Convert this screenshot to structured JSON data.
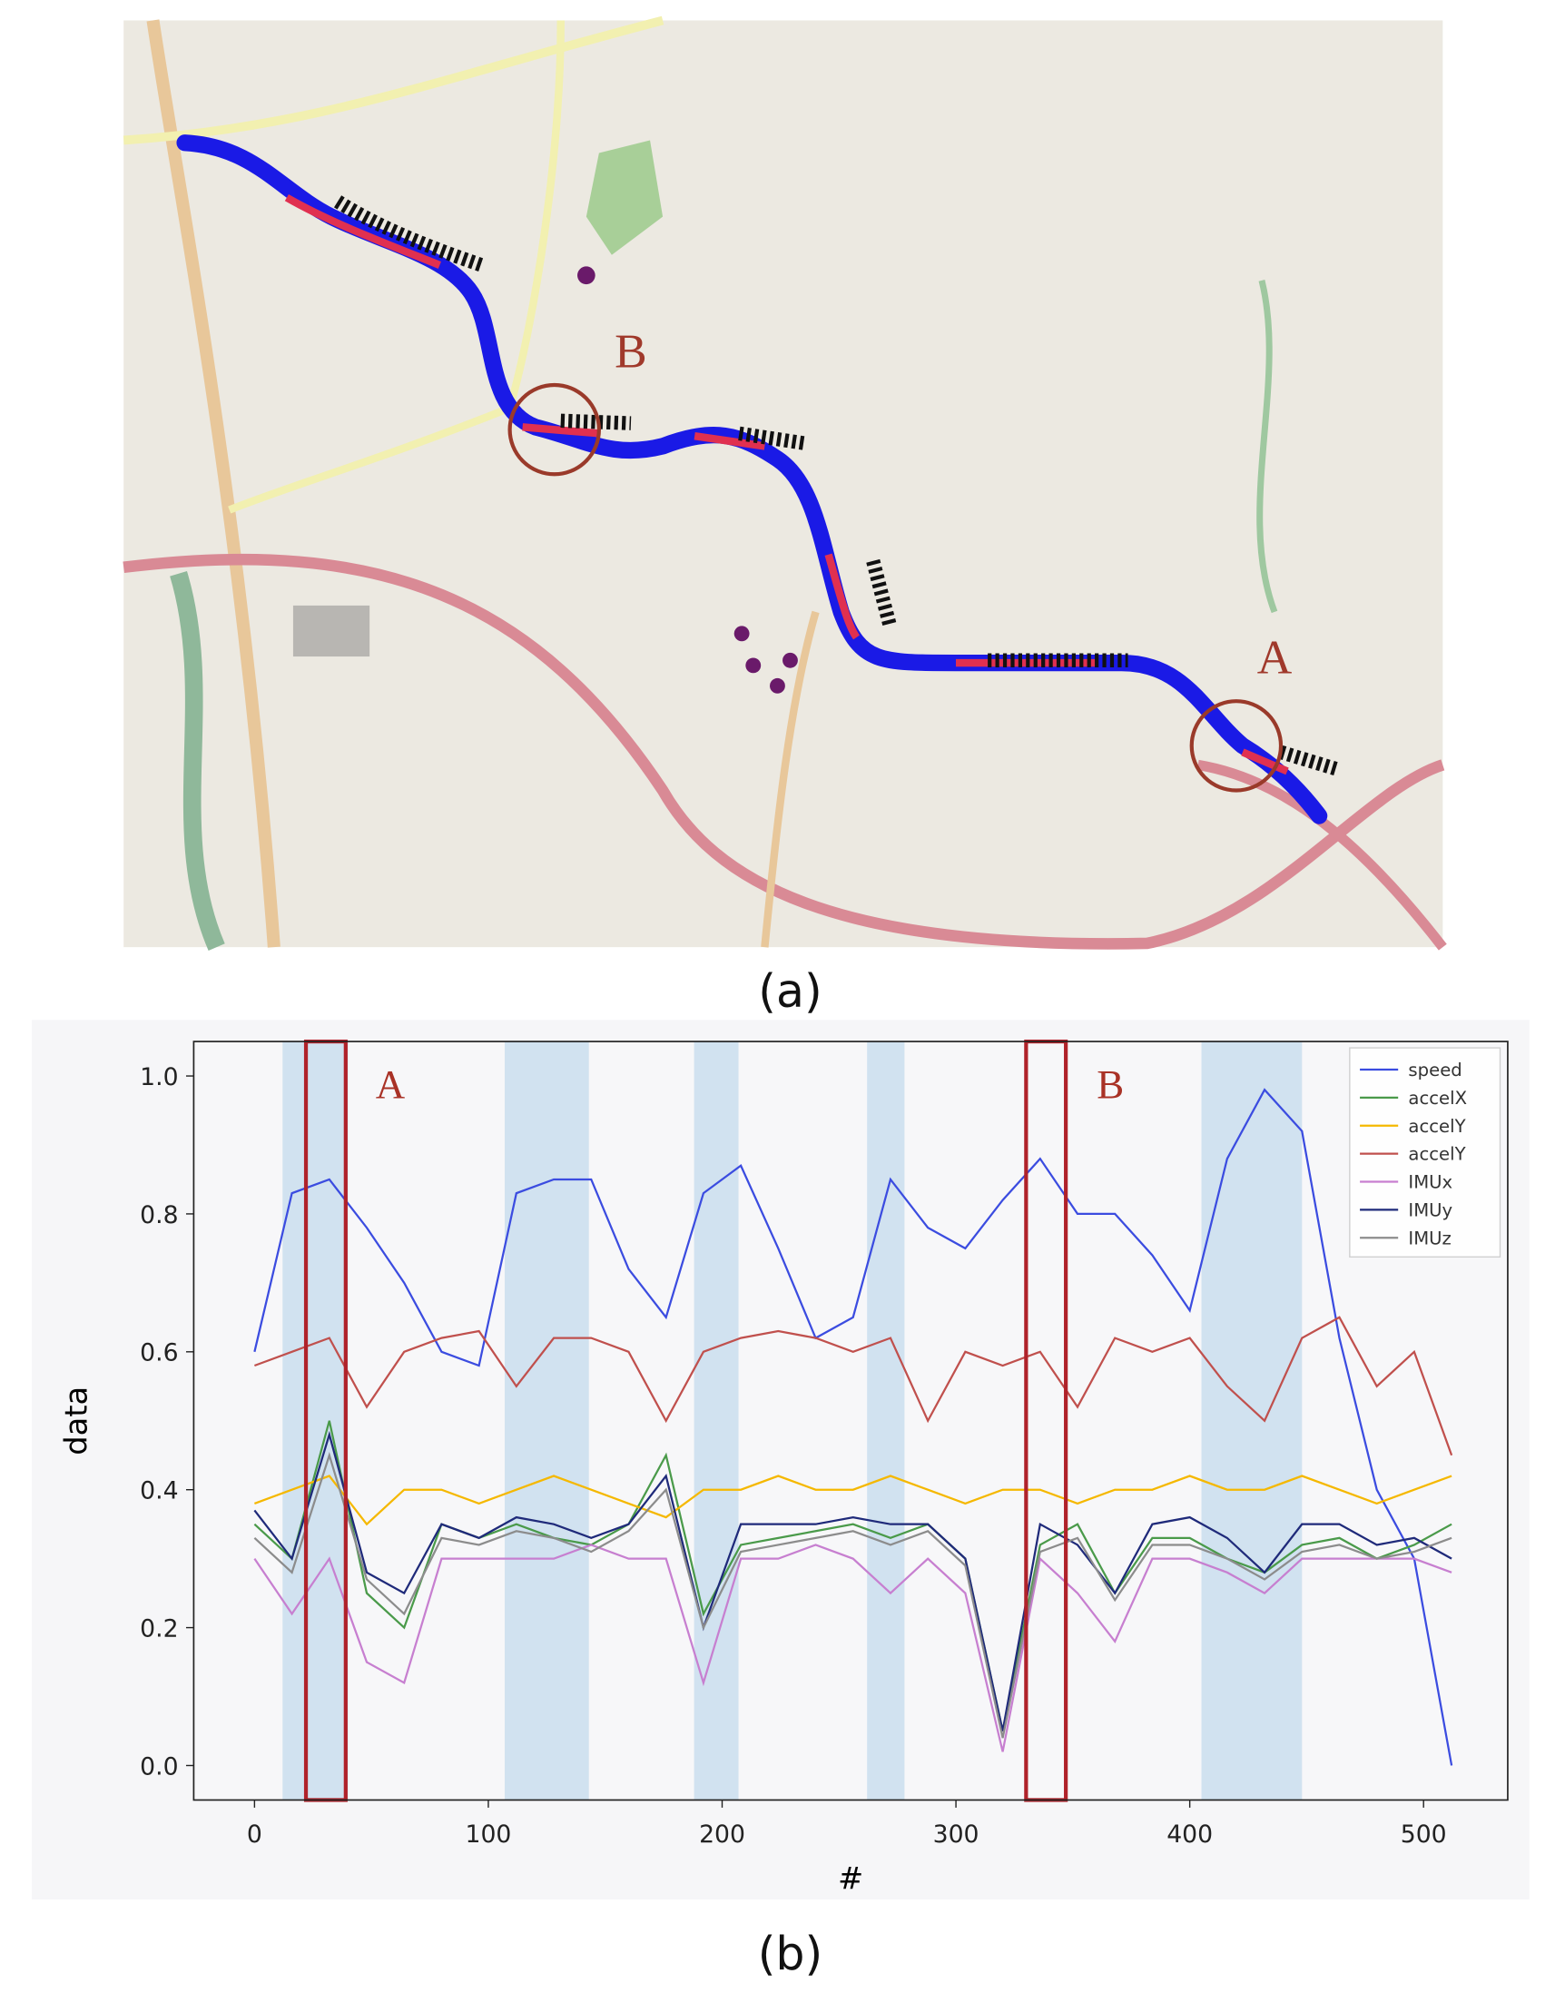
{
  "map": {
    "caption": "(a)",
    "markers": [
      {
        "label": "A"
      },
      {
        "label": "B"
      }
    ]
  },
  "chart_data": {
    "type": "line",
    "caption": "(b)",
    "xlabel": "#",
    "ylabel": "data",
    "xlim": [
      -26,
      536
    ],
    "ylim": [
      -0.05,
      1.05
    ],
    "xticks": [
      0,
      100,
      200,
      300,
      400,
      500
    ],
    "yticks": [
      {
        "value": 0,
        "label": "0.0"
      },
      {
        "value": 0.2,
        "label": "0.2"
      },
      {
        "value": 0.4,
        "label": "0.4"
      },
      {
        "value": 0.6,
        "label": "0.6"
      },
      {
        "value": 0.8,
        "label": "0.8"
      },
      {
        "value": 1,
        "label": "1.0"
      }
    ],
    "legend": "upper right",
    "highlight_spans": [
      [
        12,
        40
      ],
      [
        107,
        143
      ],
      [
        188,
        207
      ],
      [
        262,
        278
      ],
      [
        405,
        448
      ]
    ],
    "boxes": [
      {
        "label": "A",
        "x": [
          22,
          39
        ]
      },
      {
        "label": "B",
        "x": [
          330,
          347
        ]
      }
    ],
    "x": [
      0,
      16,
      32,
      48,
      64,
      80,
      96,
      112,
      128,
      144,
      160,
      176,
      192,
      208,
      224,
      240,
      256,
      272,
      288,
      304,
      320,
      336,
      352,
      368,
      384,
      400,
      416,
      432,
      448,
      464,
      480,
      496,
      512
    ],
    "series": [
      {
        "name": "speed",
        "color": "#3b4ce0",
        "values": [
          0.6,
          0.83,
          0.85,
          0.78,
          0.7,
          0.6,
          0.58,
          0.83,
          0.85,
          0.85,
          0.72,
          0.65,
          0.83,
          0.87,
          0.75,
          0.62,
          0.65,
          0.85,
          0.78,
          0.75,
          0.82,
          0.88,
          0.8,
          0.8,
          0.74,
          0.66,
          0.88,
          0.98,
          0.92,
          0.62,
          0.4,
          0.3,
          0.0
        ]
      },
      {
        "name": "accelX",
        "color": "#4a9a4a",
        "values": [
          0.35,
          0.3,
          0.5,
          0.25,
          0.2,
          0.35,
          0.33,
          0.35,
          0.33,
          0.32,
          0.35,
          0.45,
          0.22,
          0.32,
          0.33,
          0.34,
          0.35,
          0.33,
          0.35,
          0.3,
          0.05,
          0.32,
          0.35,
          0.25,
          0.33,
          0.33,
          0.3,
          0.28,
          0.32,
          0.33,
          0.3,
          0.32,
          0.35
        ]
      },
      {
        "name": "accelY",
        "color": "#f5b800",
        "values": [
          0.38,
          0.4,
          0.42,
          0.35,
          0.4,
          0.4,
          0.38,
          0.4,
          0.42,
          0.4,
          0.38,
          0.36,
          0.4,
          0.4,
          0.42,
          0.4,
          0.4,
          0.42,
          0.4,
          0.38,
          0.4,
          0.4,
          0.38,
          0.4,
          0.4,
          0.42,
          0.4,
          0.4,
          0.42,
          0.4,
          0.38,
          0.4,
          0.42
        ]
      },
      {
        "name": "accelY",
        "color": "#c0504d",
        "values": [
          0.58,
          0.6,
          0.62,
          0.52,
          0.6,
          0.62,
          0.63,
          0.55,
          0.62,
          0.62,
          0.6,
          0.5,
          0.6,
          0.62,
          0.63,
          0.62,
          0.6,
          0.62,
          0.5,
          0.6,
          0.58,
          0.6,
          0.52,
          0.62,
          0.6,
          0.62,
          0.55,
          0.5,
          0.62,
          0.65,
          0.55,
          0.6,
          0.45
        ]
      },
      {
        "name": "IMUx",
        "color": "#c77fd0",
        "values": [
          0.3,
          0.22,
          0.3,
          0.15,
          0.12,
          0.3,
          0.3,
          0.3,
          0.3,
          0.32,
          0.3,
          0.3,
          0.12,
          0.3,
          0.3,
          0.32,
          0.3,
          0.25,
          0.3,
          0.25,
          0.02,
          0.3,
          0.25,
          0.18,
          0.3,
          0.3,
          0.28,
          0.25,
          0.3,
          0.3,
          0.3,
          0.3,
          0.28
        ]
      },
      {
        "name": "IMUy",
        "color": "#1f2a7a",
        "values": [
          0.37,
          0.3,
          0.48,
          0.28,
          0.25,
          0.35,
          0.33,
          0.36,
          0.35,
          0.33,
          0.35,
          0.42,
          0.2,
          0.35,
          0.35,
          0.35,
          0.36,
          0.35,
          0.35,
          0.3,
          0.05,
          0.35,
          0.32,
          0.25,
          0.35,
          0.36,
          0.33,
          0.28,
          0.35,
          0.35,
          0.32,
          0.33,
          0.3
        ]
      },
      {
        "name": "IMUz",
        "color": "#8c8c8c",
        "values": [
          0.33,
          0.28,
          0.45,
          0.27,
          0.22,
          0.33,
          0.32,
          0.34,
          0.33,
          0.31,
          0.34,
          0.4,
          0.2,
          0.31,
          0.32,
          0.33,
          0.34,
          0.32,
          0.34,
          0.29,
          0.04,
          0.31,
          0.33,
          0.24,
          0.32,
          0.32,
          0.3,
          0.27,
          0.31,
          0.32,
          0.3,
          0.31,
          0.33
        ]
      }
    ]
  }
}
